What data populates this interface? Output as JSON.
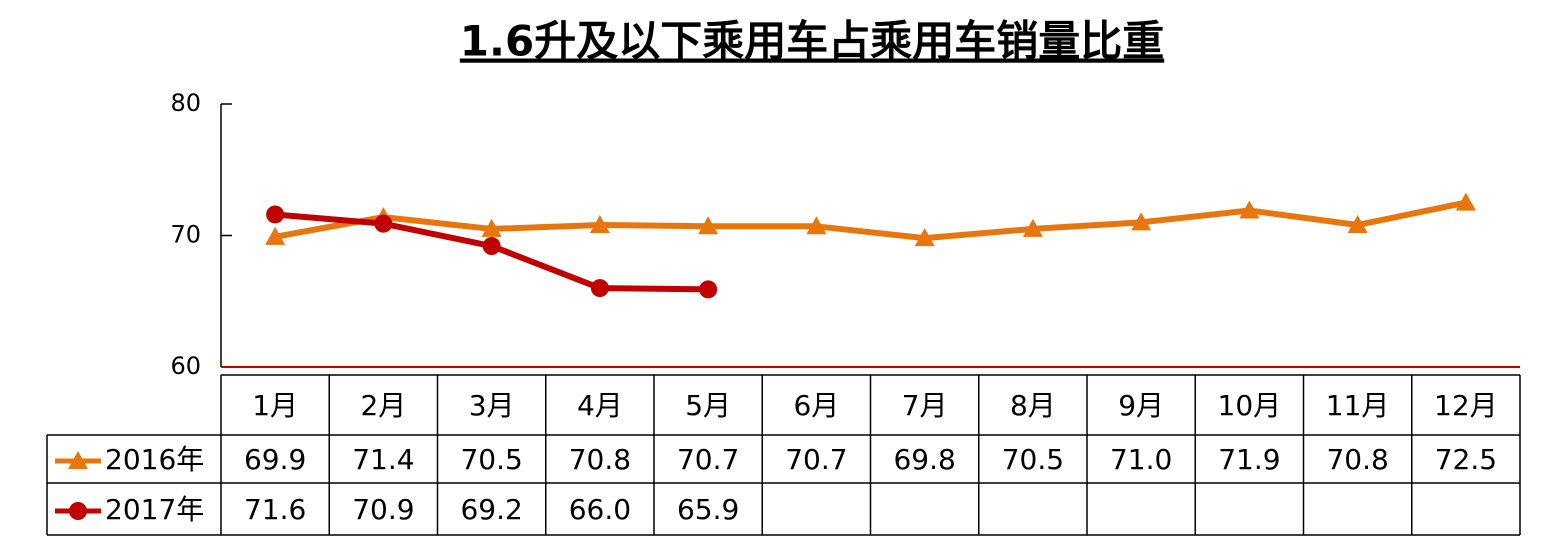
{
  "chart_data": {
    "type": "line",
    "title": "1.6升及以下乘用车占乘用车销量比重",
    "categories": [
      "1月",
      "2月",
      "3月",
      "4月",
      "5月",
      "6月",
      "7月",
      "8月",
      "9月",
      "10月",
      "11月",
      "12月"
    ],
    "series": [
      {
        "name": "2016年",
        "color": "#E8760F",
        "marker": "triangle",
        "values": [
          69.9,
          71.4,
          70.5,
          70.8,
          70.7,
          70.7,
          69.8,
          70.5,
          71.0,
          71.9,
          70.8,
          72.5
        ],
        "value_labels": [
          "69.9",
          "71.4",
          "70.5",
          "70.8",
          "70.7",
          "70.7",
          "69.8",
          "70.5",
          "71.0",
          "71.9",
          "70.8",
          "72.5"
        ]
      },
      {
        "name": "2017年",
        "color": "#C00000",
        "marker": "circle",
        "values": [
          71.6,
          70.9,
          69.2,
          66.0,
          65.9,
          null,
          null,
          null,
          null,
          null,
          null,
          null
        ],
        "value_labels": [
          "71.6",
          "70.9",
          "69.2",
          "66.0",
          "65.9",
          null,
          null,
          null,
          null,
          null,
          null,
          null
        ]
      }
    ],
    "ylim": [
      60,
      80
    ],
    "yticks": [
      60,
      70,
      80
    ]
  }
}
